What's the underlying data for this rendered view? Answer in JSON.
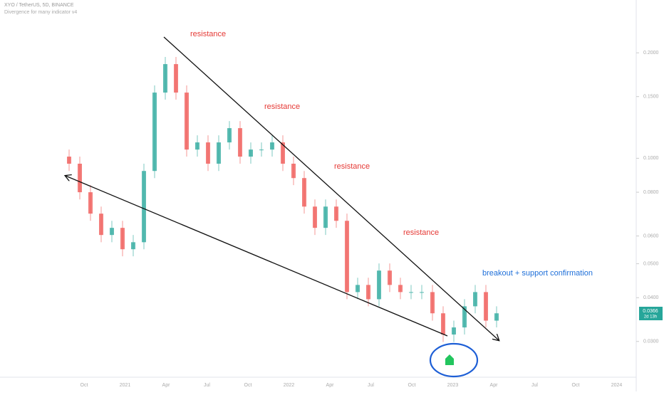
{
  "chart_data": {
    "type": "candlestick",
    "title": "XYO / TetherUS, 5D, BINANCE",
    "subtitle": "Divergence for many indicator v4",
    "annotations": [
      "resistance",
      "resistance",
      "resistance",
      "resistance",
      "breakout + support confirmation"
    ],
    "last_price": {
      "value": 0.0366,
      "label": "0.0366"
    },
    "countdown": "2d 13h",
    "x_labels": [
      "Oct",
      "2021",
      "Apr",
      "Jul",
      "Oct",
      "2022",
      "Apr",
      "Jul",
      "Oct",
      "2023",
      "Apr",
      "Jul",
      "Oct",
      "2024"
    ],
    "categories": [
      null,
      null,
      null,
      null,
      null,
      null,
      null,
      null,
      null,
      null,
      null,
      null,
      null,
      null,
      null,
      null,
      null,
      null,
      null,
      null,
      null,
      null,
      null,
      null,
      null,
      null,
      null,
      null,
      null,
      null,
      null,
      null,
      null,
      null,
      null,
      null,
      null,
      null,
      null,
      null,
      null
    ],
    "open": [
      0.1011,
      0.0965,
      0.08,
      0.0695,
      0.0604,
      0.0633,
      0.055,
      0.0576,
      0.092,
      0.154,
      0.1857,
      0.154,
      0.1059,
      0.111,
      0.0965,
      0.111,
      0.1219,
      0.1011,
      0.1059,
      0.1059,
      0.111,
      0.0965,
      0.0878,
      0.0728,
      0.0633,
      0.0728,
      0.0663,
      0.0415,
      0.0435,
      0.0396,
      0.0478,
      0.0435,
      0.0415,
      0.0415,
      0.0415,
      0.0361,
      0.0314,
      0.0329,
      0.0378,
      0.0415,
      0.0344
    ],
    "high": [
      0.1059,
      0.1011,
      0.0838,
      0.0728,
      0.0663,
      0.0663,
      0.0604,
      0.0965,
      0.1614,
      0.1946,
      0.1946,
      0.1614,
      0.1163,
      0.1163,
      0.1163,
      0.1277,
      0.1277,
      0.111,
      0.111,
      0.1163,
      0.1163,
      0.1011,
      0.092,
      0.0763,
      0.0763,
      0.0763,
      0.0695,
      0.0456,
      0.0456,
      0.0501,
      0.0501,
      0.0456,
      0.0435,
      0.0435,
      0.0435,
      0.0378,
      0.0344,
      0.0396,
      0.0435,
      0.0435,
      0.0378
    ],
    "low": [
      0.092,
      0.0763,
      0.0663,
      0.0576,
      0.0576,
      0.0525,
      0.0525,
      0.055,
      0.0878,
      0.147,
      0.147,
      0.1011,
      0.1011,
      0.092,
      0.092,
      0.1059,
      0.0965,
      0.0965,
      0.1011,
      0.1011,
      0.092,
      0.0838,
      0.0695,
      0.0604,
      0.0604,
      0.0633,
      0.0396,
      0.0396,
      0.0378,
      0.0378,
      0.0415,
      0.0396,
      0.0396,
      0.0396,
      0.0344,
      0.0299,
      0.0299,
      0.0314,
      0.0361,
      0.0329,
      0.0329
    ],
    "close": [
      0.0965,
      0.08,
      0.0695,
      0.0604,
      0.0633,
      0.055,
      0.0576,
      0.092,
      0.154,
      0.1857,
      0.154,
      0.1059,
      0.111,
      0.0965,
      0.111,
      0.1219,
      0.1011,
      0.1059,
      0.1059,
      0.111,
      0.0965,
      0.0878,
      0.0728,
      0.0633,
      0.0728,
      0.0663,
      0.0415,
      0.0435,
      0.0396,
      0.0478,
      0.0435,
      0.0415,
      0.0415,
      0.0415,
      0.0361,
      0.0314,
      0.0329,
      0.0378,
      0.0415,
      0.0344,
      0.0361
    ],
    "up_color": "#26a69a",
    "down_color": "#ef5350",
    "ylim": [
      0.0216,
      0.283
    ],
    "log_scale": true,
    "yticks": [
      {
        "value": 0.2,
        "label": "0.2000"
      },
      {
        "value": 0.15,
        "label": "0.1500"
      },
      {
        "value": 0.1,
        "label": "0.1000"
      },
      {
        "value": 0.08,
        "label": "0.0800"
      },
      {
        "value": 0.06,
        "label": "0.0600"
      },
      {
        "value": 0.05,
        "label": "0.0500"
      },
      {
        "value": 0.04,
        "label": "0.0400"
      },
      {
        "value": 0.03,
        "label": "0.0300"
      }
    ],
    "grid": false
  }
}
